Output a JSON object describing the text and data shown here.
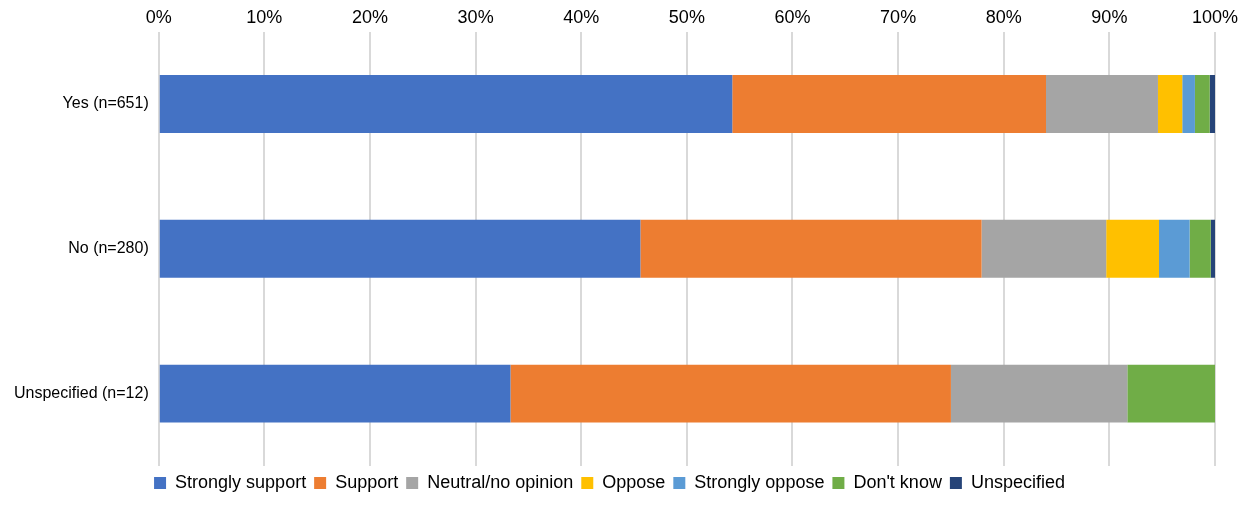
{
  "chart_data": {
    "type": "bar",
    "orientation": "horizontal",
    "stacked": true,
    "categories": [
      "Yes (n=651)",
      "No (n=280)",
      "Unspecified (n=12)"
    ],
    "series": [
      {
        "name": "Strongly support",
        "color": "#4472c4",
        "values": [
          54.3,
          45.6,
          33.3
        ]
      },
      {
        "name": "Support",
        "color": "#ed7d31",
        "values": [
          29.7,
          32.3,
          41.7
        ]
      },
      {
        "name": "Neutral/no opinion",
        "color": "#a5a5a5",
        "values": [
          10.6,
          11.8,
          16.7
        ]
      },
      {
        "name": "Oppose",
        "color": "#ffc000",
        "values": [
          2.3,
          5.0,
          0
        ]
      },
      {
        "name": "Strongly oppose",
        "color": "#5b9bd5",
        "values": [
          1.2,
          2.9,
          0
        ]
      },
      {
        "name": "Don't know",
        "color": "#70ad47",
        "values": [
          1.4,
          2.0,
          8.3
        ]
      },
      {
        "name": "Unspecified",
        "color": "#264478",
        "values": [
          0.5,
          0.4,
          0
        ]
      }
    ],
    "xlim": [
      0,
      100
    ],
    "xticks": [
      {
        "value": 0,
        "label": "0%"
      },
      {
        "value": 10,
        "label": "10%"
      },
      {
        "value": 20,
        "label": "20%"
      },
      {
        "value": 30,
        "label": "30%"
      },
      {
        "value": 40,
        "label": "40%"
      },
      {
        "value": 50,
        "label": "50%"
      },
      {
        "value": 60,
        "label": "60%"
      },
      {
        "value": 70,
        "label": "70%"
      },
      {
        "value": 80,
        "label": "80%"
      },
      {
        "value": 90,
        "label": "90%"
      },
      {
        "value": 100,
        "label": "100%"
      }
    ],
    "grid": "x",
    "legend": "bottom"
  }
}
